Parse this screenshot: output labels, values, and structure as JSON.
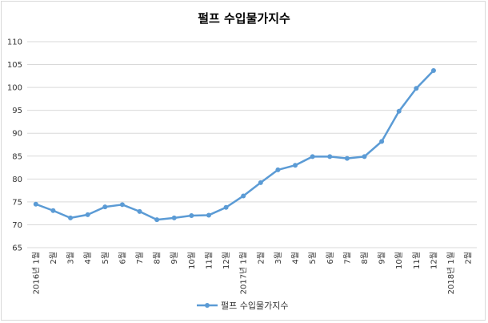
{
  "chart_data": {
    "type": "line",
    "title": "펄프 수입물가지수",
    "xlabel": "",
    "ylabel": "",
    "ylim": [
      65,
      110
    ],
    "yticks": [
      65,
      70,
      75,
      80,
      85,
      90,
      95,
      100,
      105,
      110
    ],
    "grid": true,
    "legend_position": "bottom",
    "categories": [
      "2016년 1월",
      "2월",
      "3월",
      "4월",
      "5월",
      "6월",
      "7월",
      "8월",
      "9월",
      "10월",
      "11월",
      "12월",
      "2017년 1월",
      "2월",
      "3월",
      "4월",
      "5월",
      "6월",
      "7월",
      "8월",
      "9월",
      "10월",
      "11월",
      "12월",
      "2018년 1월",
      "2월"
    ],
    "series": [
      {
        "name": "펄프 수입물가지수",
        "color": "#5b9bd5",
        "values": [
          74.5,
          73.1,
          71.5,
          72.2,
          73.9,
          74.4,
          72.9,
          71.1,
          71.5,
          72.0,
          72.1,
          73.8,
          76.3,
          79.2,
          82.0,
          83.0,
          84.9,
          84.9,
          84.5,
          84.9,
          88.2,
          94.8,
          99.8,
          103.7,
          null,
          null
        ]
      }
    ]
  }
}
